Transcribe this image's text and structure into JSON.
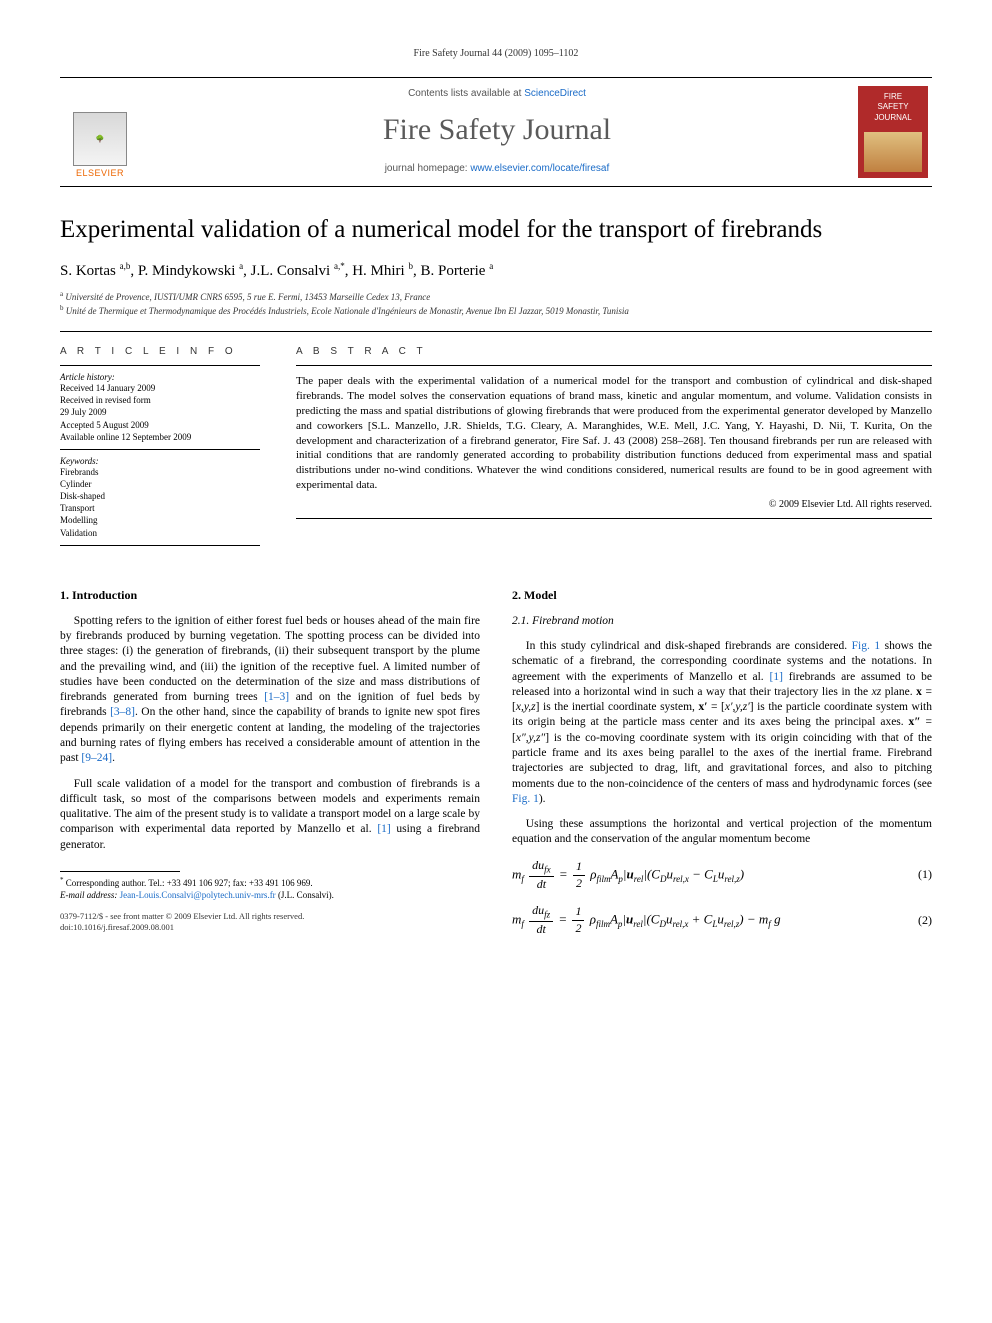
{
  "runningHead": "Fire Safety Journal 44 (2009) 1095–1102",
  "masthead": {
    "contentsPrefix": "Contents lists available at ",
    "contentsLink": "ScienceDirect",
    "journalName": "Fire Safety Journal",
    "homepagePrefix": "journal homepage: ",
    "homepageUrl": "www.elsevier.com/locate/firesaf",
    "publisher": "ELSEVIER",
    "coverLine1": "FIRE",
    "coverLine2": "SAFETY",
    "coverLine3": "JOURNAL"
  },
  "title": "Experimental validation of a numerical model for the transport of firebrands",
  "authorsHtml": "S. Kortas <span class='sup'>a,b</span>, P. Mindykowski <span class='sup'>a</span>, J.L. Consalvi <span class='sup'>a,*</span>, H. Mhiri <span class='sup'>b</span>, B. Porterie <span class='sup'>a</span>",
  "affiliations": [
    {
      "sup": "a",
      "text": "Université de Provence, IUSTI/UMR CNRS 6595, 5 rue E. Fermi, 13453 Marseille Cedex 13, France"
    },
    {
      "sup": "b",
      "text": "Unité de Thermique et Thermodynamique des Procédés Industriels, Ecole Nationale d'Ingénieurs de Monastir, Avenue Ibn El Jazzar, 5019 Monastir, Tunisia"
    }
  ],
  "articleInfo": {
    "label": "A R T I C L E  I N F O",
    "historyHead": "Article history:",
    "history": [
      "Received 14 January 2009",
      "Received in revised form",
      "29 July 2009",
      "Accepted 5 August 2009",
      "Available online 12 September 2009"
    ],
    "keywordsHead": "Keywords:",
    "keywords": [
      "Firebrands",
      "Cylinder",
      "Disk-shaped",
      "Transport",
      "Modelling",
      "Validation"
    ]
  },
  "abstract": {
    "label": "A B S T R A C T",
    "bodyHtml": "The paper deals with the experimental validation of a numerical model for the transport and combustion of cylindrical and disk-shaped firebrands. The model solves the conservation equations of brand mass, kinetic and angular momentum, and volume. Validation consists in predicting the mass and spatial distributions of glowing firebrands that were produced from the experimental generator developed by Manzello and coworkers [S.L. Manzello, J.R. Shields, T.G. Cleary, A. Maranghides, W.E. Mell, J.C. Yang, Y. Hayashi, D. Nii, T. Kurita, On the development and characterization of a firebrand generator, Fire Saf. J. 43 (2008) 258–268]. Ten thousand firebrands per run are released with initial conditions that are randomly generated according to probability distribution functions deduced from experimental mass and spatial distributions under no-wind conditions. Whatever the wind conditions considered, numerical results are found to be in good agreement with experimental data.",
    "copyright": "© 2009 Elsevier Ltd. All rights reserved."
  },
  "section1": {
    "head": "1.  Introduction",
    "p1Html": "Spotting refers to the ignition of either forest fuel beds or houses ahead of the main fire by firebrands produced by burning vegetation. The spotting process can be divided into three stages: (i) the generation of firebrands, (ii) their subsequent transport by the plume and the prevailing wind, and (iii) the ignition of the receptive fuel. A limited number of studies have been conducted on the determination of the size and mass distributions of firebrands generated from burning trees <span class='ref'>[1–3]</span> and on the ignition of fuel beds by firebrands <span class='ref'>[3–8]</span>. On the other hand, since the capability of brands to ignite new spot fires depends primarily on their energetic content at landing, the modeling of the trajectories and burning rates of flying embers has received a considerable amount of attention in the past <span class='ref'>[9–24]</span>.",
    "p2Html": "Full scale validation of a model for the transport and combustion of firebrands is a difficult task, so most of the comparisons between models and experiments remain qualitative. The aim of the present study is to validate a transport model on a large scale by comparison with experimental data reported by Manzello et al. <span class='ref'>[1]</span> using a firebrand generator."
  },
  "section2": {
    "head": "2.  Model",
    "sub1": "2.1.  Firebrand motion",
    "p1Html": "In this study cylindrical and disk-shaped firebrands are considered. <span class='ref'>Fig. 1</span> shows the schematic of a firebrand, the corresponding coordinate systems and the notations. In agreement with the experiments of Manzello et al. <span class='ref'>[1]</span> firebrands are assumed to be released into a horizontal wind in such a way that their trajectory lies in the <span class='ital'>xz</span> plane. <span class='bold'>x</span> = [<span class='ital'>x,y,z</span>] is the inertial coordinate system, <span class='bold'>x′</span> = [<span class='ital'>x′,y,z′</span>] is the particle coordinate system with its origin being at the particle mass center and its axes being the principal axes. <span class='bold'>x″</span> = [<span class='ital'>x″,y,z″</span>] is the co-moving coordinate system with its origin coinciding with that of the particle frame and its axes being parallel to the axes of the inertial frame. Firebrand trajectories are subjected to drag, lift, and gravitational forces, and also to pitching moments due to the non-coincidence of the centers of mass and hydrodynamic forces (see <span class='ref'>Fig. 1</span>).",
    "p2Html": "Using these assumptions the horizontal and vertical projection of the momentum equation and the conservation of the angular momentum become"
  },
  "equations": {
    "eq1": "m<span class='sub'>f</span> <span class='frac'><span class='num'>du<span class='sub'>fx</span></span><span class='den'>dt</span></span> = <span class='frac'><span class='num'>1</span><span class='den'>2</span></span> ρ<span class='sub'>film</span>A<span class='sub'>p</span>|<b>u</b><span class='sub'>rel</span>|(C<span class='sub'>D</span>u<span class='sub'>rel,x</span> − C<span class='sub'>L</span>u<span class='sub'>rel,z</span>)",
    "eq1num": "(1)",
    "eq2": "m<span class='sub'>f</span> <span class='frac'><span class='num'>du<span class='sub'>fz</span></span><span class='den'>dt</span></span> = <span class='frac'><span class='num'>1</span><span class='den'>2</span></span> ρ<span class='sub'>film</span>A<span class='sub'>p</span>|<b>u</b><span class='sub'>rel</span>|(C<span class='sub'>D</span>u<span class='sub'>rel,x</span> + C<span class='sub'>L</span>u<span class='sub'>rel,z</span>) − m<span class='sub'>f</span> g",
    "eq2num": "(2)"
  },
  "footnote": {
    "corrHtml": "<span class='sup'>*</span> Corresponding author. Tel.: +33 491 106 927; fax: +33 491 106 969.",
    "emailLabel": "E-mail address:",
    "email": "Jean-Louis.Consalvi@polytech.univ-mrs.fr",
    "emailTail": "(J.L. Consalvi)."
  },
  "footerMeta": {
    "line1": "0379-7112/$ - see front matter © 2009 Elsevier Ltd. All rights reserved.",
    "line2": "doi:10.1016/j.firesaf.2009.08.001"
  },
  "colors": {
    "link": "#1a6bc7",
    "elsevierOrange": "#ec6500",
    "coverRed": "#b02a2a"
  }
}
